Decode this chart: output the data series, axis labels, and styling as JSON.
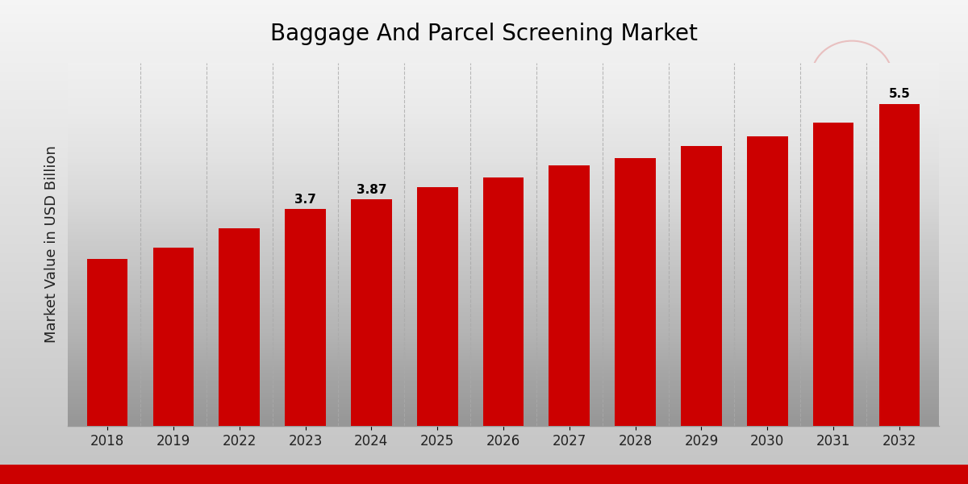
{
  "title": "Baggage And Parcel Screening Market",
  "ylabel": "Market Value in USD Billion",
  "categories": [
    "2018",
    "2019",
    "2022",
    "2023",
    "2024",
    "2025",
    "2026",
    "2027",
    "2028",
    "2029",
    "2030",
    "2031",
    "2032"
  ],
  "values": [
    2.85,
    3.05,
    3.38,
    3.7,
    3.87,
    4.08,
    4.25,
    4.45,
    4.58,
    4.78,
    4.95,
    5.18,
    5.5
  ],
  "bar_color": "#CC0000",
  "label_values": {
    "2023": "3.7",
    "2024": "3.87",
    "2032": "5.5"
  },
  "ylim": [
    0,
    6.2
  ],
  "title_fontsize": 20,
  "ylabel_fontsize": 13,
  "tick_fontsize": 12,
  "grid_color": "#bbbbbb",
  "bg_color_top": "#f0f0f0",
  "bg_color_bottom": "#c8c8c8",
  "bottom_bar_color": "#CC0000"
}
